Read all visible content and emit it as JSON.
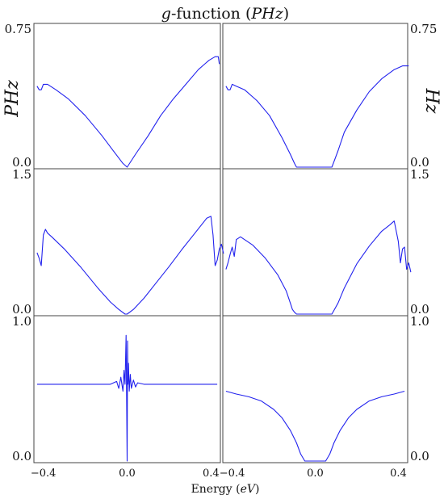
{
  "figure": {
    "title": "g-function (PHz)",
    "title_italic_part": "g",
    "title_rest": "-function (",
    "title_var": "PHz",
    "title_close": ")",
    "xlabel_text": "Energy (",
    "xlabel_var": "eV",
    "xlabel_close": ")",
    "left_ylabel": "PHz",
    "right_ylabel": "Hz"
  },
  "style": {
    "line_color": "#2222ee",
    "axis_color": "#444444"
  },
  "chart_data": [
    {
      "type": "line",
      "panel": "top-left",
      "ylim": [
        0.0,
        0.75
      ],
      "yticks": [
        "0.75",
        "0.0"
      ],
      "x_range": [
        -0.43,
        0.44
      ],
      "series": [
        {
          "x": [
            -0.43,
            -0.42,
            -0.41,
            -0.4,
            -0.38,
            -0.34,
            -0.28,
            -0.2,
            -0.12,
            -0.06,
            -0.02,
            0.0,
            0.04,
            0.1,
            0.16,
            0.22,
            0.28,
            0.34,
            0.39,
            0.42,
            0.435,
            0.44
          ],
          "y": [
            0.44,
            0.42,
            0.42,
            0.45,
            0.45,
            0.42,
            0.37,
            0.28,
            0.17,
            0.08,
            0.02,
            0.0,
            0.07,
            0.17,
            0.28,
            0.37,
            0.45,
            0.53,
            0.58,
            0.6,
            0.6,
            0.56
          ]
        }
      ]
    },
    {
      "type": "line",
      "panel": "top-right",
      "ylim": [
        0.0,
        0.75
      ],
      "yticks": [
        "0.75",
        "0.0"
      ],
      "x_range": [
        -0.43,
        0.45
      ],
      "series": [
        {
          "x": [
            -0.43,
            -0.42,
            -0.41,
            -0.4,
            -0.38,
            -0.34,
            -0.28,
            -0.22,
            -0.16,
            -0.12,
            -0.1,
            -0.09,
            -0.07,
            0.0,
            0.07,
            0.08,
            0.09,
            0.11,
            0.14,
            0.2,
            0.26,
            0.32,
            0.38,
            0.42,
            0.45
          ],
          "y": [
            0.44,
            0.42,
            0.42,
            0.45,
            0.44,
            0.42,
            0.36,
            0.28,
            0.16,
            0.07,
            0.02,
            0.0,
            0.0,
            0.0,
            0.0,
            0.0,
            0.03,
            0.09,
            0.19,
            0.31,
            0.41,
            0.48,
            0.53,
            0.55,
            0.55
          ]
        }
      ]
    },
    {
      "type": "line",
      "panel": "middle-left",
      "ylim": [
        0.0,
        1.5
      ],
      "yticks": [
        "1.5",
        "0.0"
      ],
      "x_range": [
        -0.43,
        0.46
      ],
      "series": [
        {
          "x": [
            -0.43,
            -0.42,
            -0.41,
            -0.4,
            -0.39,
            -0.38,
            -0.36,
            -0.3,
            -0.22,
            -0.14,
            -0.08,
            -0.04,
            -0.01,
            0.0,
            0.03,
            0.08,
            0.14,
            0.2,
            0.26,
            0.32,
            0.38,
            0.4,
            0.41,
            0.42,
            0.43,
            0.44,
            0.45,
            0.46
          ],
          "y": [
            0.66,
            0.6,
            0.52,
            0.85,
            0.91,
            0.87,
            0.83,
            0.7,
            0.5,
            0.28,
            0.13,
            0.05,
            0.0,
            0.0,
            0.05,
            0.17,
            0.34,
            0.51,
            0.69,
            0.86,
            1.03,
            1.05,
            0.85,
            0.52,
            0.58,
            0.7,
            0.75,
            0.65
          ]
        }
      ]
    },
    {
      "type": "line",
      "panel": "middle-right",
      "ylim": [
        0.0,
        1.5
      ],
      "yticks": [
        "1.5",
        "0.0"
      ],
      "x_range": [
        -0.43,
        0.46
      ],
      "series": [
        {
          "x": [
            -0.43,
            -0.42,
            -0.41,
            -0.4,
            -0.39,
            -0.38,
            -0.36,
            -0.3,
            -0.24,
            -0.18,
            -0.14,
            -0.12,
            -0.11,
            -0.1,
            -0.09,
            0.0,
            0.07,
            0.08,
            0.09,
            0.11,
            0.14,
            0.2,
            0.26,
            0.32,
            0.36,
            0.38,
            0.4,
            0.41,
            0.42,
            0.43,
            0.44,
            0.45,
            0.46
          ],
          "y": [
            0.48,
            0.55,
            0.64,
            0.72,
            0.62,
            0.8,
            0.83,
            0.74,
            0.6,
            0.42,
            0.25,
            0.12,
            0.05,
            0.02,
            0.0,
            0.0,
            0.0,
            0.0,
            0.04,
            0.12,
            0.28,
            0.54,
            0.73,
            0.89,
            0.96,
            1.0,
            0.78,
            0.55,
            0.7,
            0.72,
            0.48,
            0.55,
            0.45
          ]
        }
      ]
    },
    {
      "type": "line",
      "panel": "bottom-left",
      "ylim": [
        0.0,
        1.0
      ],
      "yticks": [
        "1.0",
        "0.0"
      ],
      "xticks": [
        "-0.4",
        "0.0",
        "0.4"
      ],
      "x_range": [
        -0.43,
        0.43
      ],
      "series": [
        {
          "x": [
            -0.43,
            -0.2,
            -0.08,
            -0.05,
            -0.04,
            -0.03,
            -0.02,
            -0.015,
            -0.01,
            -0.005,
            -0.003,
            0.0,
            0.002,
            0.004,
            0.006,
            0.01,
            0.015,
            0.02,
            0.03,
            0.04,
            0.05,
            0.08,
            0.2,
            0.43
          ],
          "y": [
            0.55,
            0.55,
            0.55,
            0.57,
            0.52,
            0.6,
            0.5,
            0.65,
            0.55,
            0.9,
            0.55,
            0.0,
            0.86,
            0.55,
            0.7,
            0.5,
            0.62,
            0.52,
            0.58,
            0.53,
            0.56,
            0.55,
            0.55,
            0.55
          ]
        }
      ]
    },
    {
      "type": "line",
      "panel": "bottom-right",
      "ylim": [
        0.0,
        1.0
      ],
      "yticks": [
        "1.0",
        "0.0"
      ],
      "xticks": [
        "-0.4",
        "0.0",
        "0.4"
      ],
      "x_range": [
        -0.43,
        0.43
      ],
      "series": [
        {
          "x": [
            -0.43,
            -0.38,
            -0.32,
            -0.26,
            -0.2,
            -0.16,
            -0.12,
            -0.09,
            -0.07,
            -0.05,
            0.05,
            0.07,
            0.09,
            0.12,
            0.16,
            0.2,
            0.26,
            0.32,
            0.38,
            0.43
          ],
          "y": [
            0.5,
            0.48,
            0.46,
            0.43,
            0.37,
            0.31,
            0.22,
            0.13,
            0.05,
            0.0,
            0.0,
            0.05,
            0.13,
            0.22,
            0.31,
            0.37,
            0.43,
            0.46,
            0.48,
            0.5
          ]
        }
      ]
    }
  ]
}
